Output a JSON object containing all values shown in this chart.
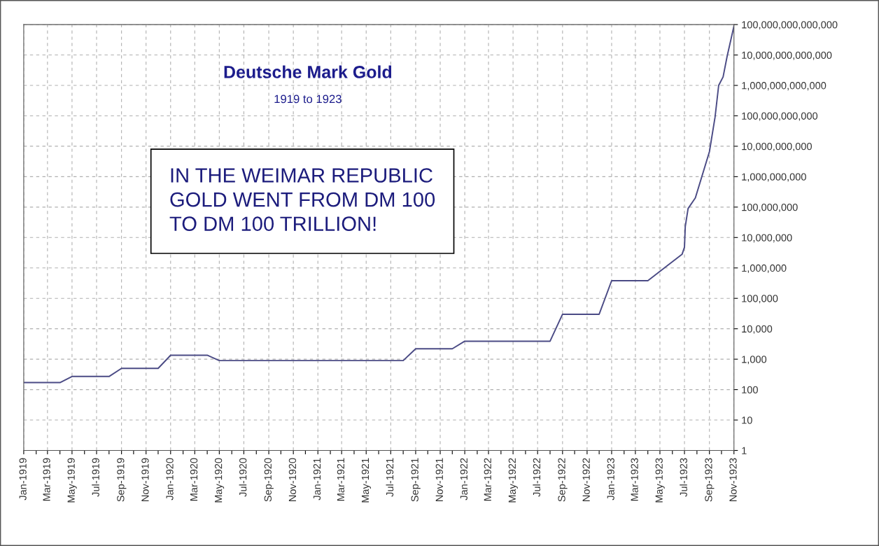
{
  "chart_data": {
    "type": "line",
    "title": "Deutsche Mark Gold",
    "subtitle": "1919 to 1923",
    "annotations": [
      "IN THE WEIMAR REPUBLIC\nGOLD WENT FROM DM 100\nTO DM 100 TRILLION!"
    ],
    "x": [
      "1919-01-01",
      "1919-04-01",
      "1919-05-01",
      "1919-08-01",
      "1919-09-01",
      "1919-12-01",
      "1920-01-01",
      "1920-04-01",
      "1920-05-01",
      "1921-08-01",
      "1921-09-01",
      "1921-12-01",
      "1922-01-01",
      "1922-08-01",
      "1922-09-01",
      "1922-12-01",
      "1923-01-01",
      "1923-04-01",
      "1923-05-12",
      "1923-06-25",
      "1923-07-01",
      "1923-07-03",
      "1923-07-10",
      "1923-07-28",
      "1923-09-01",
      "1923-09-15",
      "1923-09-24",
      "1923-10-05",
      "1923-10-15",
      "1923-11-01"
    ],
    "series": [
      {
        "color": "#4b4b85",
        "values": [
          170,
          170,
          270,
          270,
          500,
          500,
          1350,
          1350,
          900,
          900,
          2200,
          2200,
          3900,
          3900,
          30000,
          30000,
          380000,
          380000,
          1000000,
          2800000,
          4800000,
          23000000,
          90000000,
          200000000,
          6600000000,
          90000000000,
          1000000000000,
          1900000000000,
          9000000000000,
          90000000000000
        ]
      }
    ],
    "log": "y",
    "xlim": [
      "1919-01-01",
      "1923-11-01"
    ],
    "xticks": [
      {
        "value": "1919-01-01",
        "label": "Jan-1919"
      },
      {
        "value": "1919-02-01",
        "label": null
      },
      {
        "value": "1919-03-01",
        "label": "Mar-1919"
      },
      {
        "value": "1919-04-01",
        "label": null
      },
      {
        "value": "1919-05-01",
        "label": "May-1919"
      },
      {
        "value": "1919-06-01",
        "label": null
      },
      {
        "value": "1919-07-01",
        "label": "Jul-1919"
      },
      {
        "value": "1919-08-01",
        "label": null
      },
      {
        "value": "1919-09-01",
        "label": "Sep-1919"
      },
      {
        "value": "1919-10-01",
        "label": null
      },
      {
        "value": "1919-11-01",
        "label": "Nov-1919"
      },
      {
        "value": "1919-12-01",
        "label": null
      },
      {
        "value": "1920-01-01",
        "label": "Jan-1920"
      },
      {
        "value": "1920-02-01",
        "label": null
      },
      {
        "value": "1920-03-01",
        "label": "Mar-1920"
      },
      {
        "value": "1920-04-01",
        "label": null
      },
      {
        "value": "1920-05-01",
        "label": "May-1920"
      },
      {
        "value": "1920-06-01",
        "label": null
      },
      {
        "value": "1920-07-01",
        "label": "Jul-1920"
      },
      {
        "value": "1920-08-01",
        "label": null
      },
      {
        "value": "1920-09-01",
        "label": "Sep-1920"
      },
      {
        "value": "1920-10-01",
        "label": null
      },
      {
        "value": "1920-11-01",
        "label": "Nov-1920"
      },
      {
        "value": "1920-12-01",
        "label": null
      },
      {
        "value": "1921-01-01",
        "label": "Jan-1921"
      },
      {
        "value": "1921-02-01",
        "label": null
      },
      {
        "value": "1921-03-01",
        "label": "Mar-1921"
      },
      {
        "value": "1921-04-01",
        "label": null
      },
      {
        "value": "1921-05-01",
        "label": "May-1921"
      },
      {
        "value": "1921-06-01",
        "label": null
      },
      {
        "value": "1921-07-01",
        "label": "Jul-1921"
      },
      {
        "value": "1921-08-01",
        "label": null
      },
      {
        "value": "1921-09-01",
        "label": "Sep-1921"
      },
      {
        "value": "1921-10-01",
        "label": null
      },
      {
        "value": "1921-11-01",
        "label": "Nov-1921"
      },
      {
        "value": "1921-12-01",
        "label": null
      },
      {
        "value": "1922-01-01",
        "label": "Jan-1922"
      },
      {
        "value": "1922-02-01",
        "label": null
      },
      {
        "value": "1922-03-01",
        "label": "Mar-1922"
      },
      {
        "value": "1922-04-01",
        "label": null
      },
      {
        "value": "1922-05-01",
        "label": "May-1922"
      },
      {
        "value": "1922-06-01",
        "label": null
      },
      {
        "value": "1922-07-01",
        "label": "Jul-1922"
      },
      {
        "value": "1922-08-01",
        "label": null
      },
      {
        "value": "1922-09-01",
        "label": "Sep-1922"
      },
      {
        "value": "1922-10-01",
        "label": null
      },
      {
        "value": "1922-11-01",
        "label": "Nov-1922"
      },
      {
        "value": "1922-12-01",
        "label": null
      },
      {
        "value": "1923-01-01",
        "label": "Jan-1923"
      },
      {
        "value": "1923-02-01",
        "label": null
      },
      {
        "value": "1923-03-01",
        "label": "Mar-1923"
      },
      {
        "value": "1923-04-01",
        "label": null
      },
      {
        "value": "1923-05-01",
        "label": "May-1923"
      },
      {
        "value": "1923-06-01",
        "label": null
      },
      {
        "value": "1923-07-01",
        "label": "Jul-1923"
      },
      {
        "value": "1923-08-01",
        "label": null
      },
      {
        "value": "1923-09-01",
        "label": "Sep-1923"
      },
      {
        "value": "1923-10-01",
        "label": null
      },
      {
        "value": "1923-11-01",
        "label": "Nov-1923"
      }
    ],
    "ylim": [
      1,
      100000000000000
    ],
    "yticks": [
      1,
      10,
      100,
      {
        "value": 1000,
        "label": "1,000"
      },
      {
        "value": 10000,
        "label": "10,000"
      },
      {
        "value": 100000,
        "label": "100,000"
      },
      {
        "value": 1000000,
        "label": "1,000,000"
      },
      {
        "value": 10000000,
        "label": "10,000,000"
      },
      {
        "value": 100000000,
        "label": "100,000,000"
      },
      {
        "value": 1000000000,
        "label": "1,000,000,000"
      },
      {
        "value": 10000000000,
        "label": "10,000,000,000"
      },
      {
        "value": 100000000000,
        "label": "100,000,000,000"
      },
      {
        "value": 1000000000000,
        "label": "1,000,000,000,000"
      },
      {
        "value": 10000000000000,
        "label": "10,000,000,000,000"
      },
      {
        "value": 100000000000000,
        "label": "100,000,000,000,000"
      }
    ],
    "grid": true
  }
}
